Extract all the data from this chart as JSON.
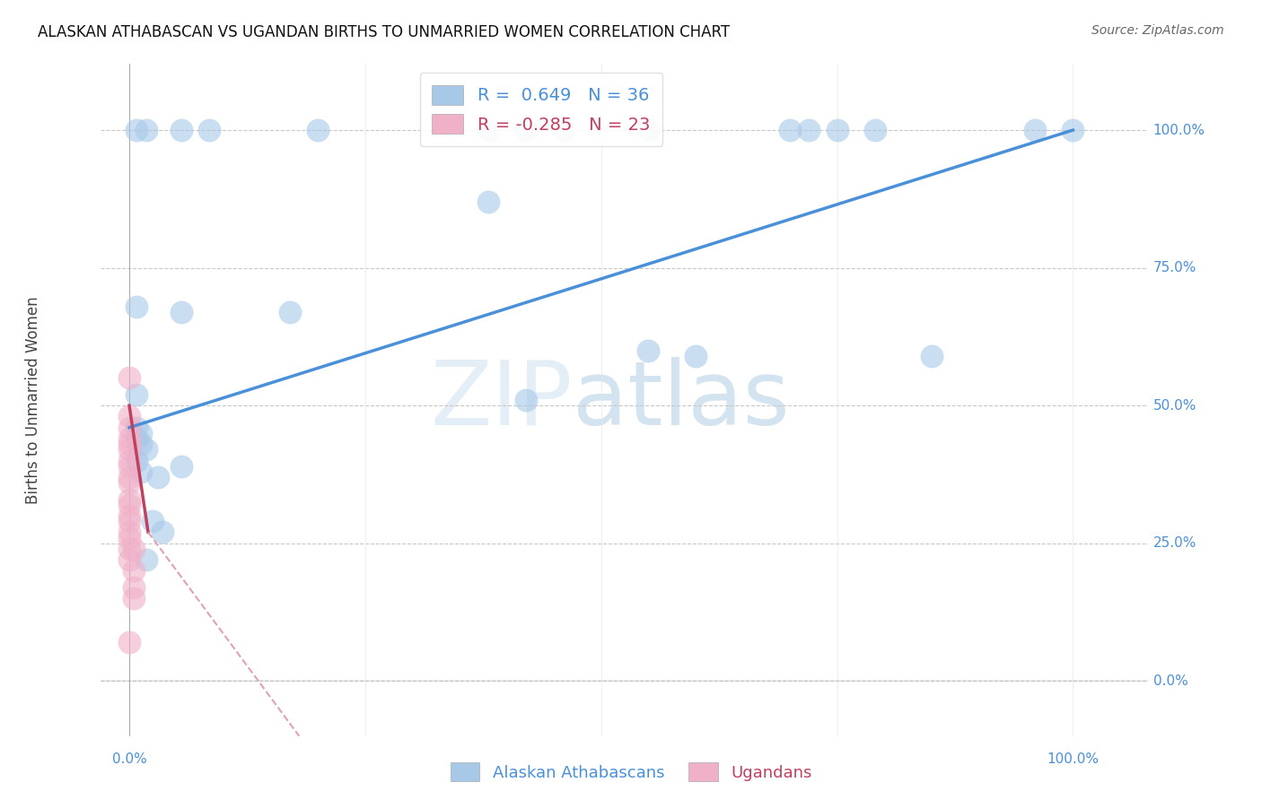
{
  "title": "ALASKAN ATHABASCAN VS UGANDAN BIRTHS TO UNMARRIED WOMEN CORRELATION CHART",
  "source": "Source: ZipAtlas.com",
  "ylabel": "Births to Unmarried Women",
  "watermark_zip": "ZIP",
  "watermark_atlas": "atlas",
  "blue_R": "0.649",
  "blue_N": "36",
  "pink_R": "-0.285",
  "pink_N": "23",
  "blue_color": "#a8c8e8",
  "pink_color": "#f0b0c8",
  "blue_line_color": "#4a90d9",
  "pink_line_color": "#c04060",
  "pink_dash_color": "#e0a0b8",
  "grid_color": "#c8c8c8",
  "blue_scatter": [
    [
      0.008,
      1.0
    ],
    [
      0.018,
      1.0
    ],
    [
      0.055,
      1.0
    ],
    [
      0.085,
      1.0
    ],
    [
      0.2,
      1.0
    ],
    [
      0.38,
      1.0
    ],
    [
      0.42,
      1.0
    ],
    [
      0.46,
      1.0
    ],
    [
      0.55,
      1.0
    ],
    [
      0.7,
      1.0
    ],
    [
      0.72,
      1.0
    ],
    [
      0.75,
      1.0
    ],
    [
      0.79,
      1.0
    ],
    [
      0.96,
      1.0
    ],
    [
      1.0,
      1.0
    ],
    [
      0.38,
      0.87
    ],
    [
      0.008,
      0.68
    ],
    [
      0.055,
      0.67
    ],
    [
      0.17,
      0.67
    ],
    [
      0.008,
      0.52
    ],
    [
      0.42,
      0.51
    ],
    [
      0.008,
      0.46
    ],
    [
      0.012,
      0.45
    ],
    [
      0.008,
      0.44
    ],
    [
      0.012,
      0.43
    ],
    [
      0.018,
      0.42
    ],
    [
      0.008,
      0.4
    ],
    [
      0.055,
      0.39
    ],
    [
      0.012,
      0.38
    ],
    [
      0.03,
      0.37
    ],
    [
      0.55,
      0.6
    ],
    [
      0.6,
      0.59
    ],
    [
      0.85,
      0.59
    ],
    [
      0.025,
      0.29
    ],
    [
      0.035,
      0.27
    ],
    [
      0.018,
      0.22
    ]
  ],
  "pink_scatter": [
    [
      0.0,
      0.55
    ],
    [
      0.0,
      0.48
    ],
    [
      0.0,
      0.46
    ],
    [
      0.0,
      0.44
    ],
    [
      0.0,
      0.43
    ],
    [
      0.0,
      0.42
    ],
    [
      0.0,
      0.4
    ],
    [
      0.0,
      0.39
    ],
    [
      0.0,
      0.37
    ],
    [
      0.0,
      0.36
    ],
    [
      0.0,
      0.33
    ],
    [
      0.0,
      0.32
    ],
    [
      0.0,
      0.3
    ],
    [
      0.0,
      0.29
    ],
    [
      0.0,
      0.27
    ],
    [
      0.0,
      0.26
    ],
    [
      0.0,
      0.24
    ],
    [
      0.005,
      0.24
    ],
    [
      0.0,
      0.22
    ],
    [
      0.005,
      0.2
    ],
    [
      0.005,
      0.17
    ],
    [
      0.005,
      0.15
    ],
    [
      0.0,
      0.07
    ]
  ],
  "blue_line": [
    0.0,
    0.46,
    1.0,
    1.0
  ],
  "pink_line_solid": [
    0.0,
    0.5,
    0.02,
    0.27
  ],
  "pink_line_dashed": [
    0.02,
    0.27,
    0.18,
    -0.1
  ],
  "xlim": [
    -0.03,
    1.08
  ],
  "ylim": [
    -0.1,
    1.12
  ],
  "xticks": [
    0.0,
    0.25,
    0.5,
    0.75,
    1.0
  ],
  "yticks": [
    0.0,
    0.25,
    0.5,
    0.75,
    1.0
  ],
  "ytick_labels_right": [
    "0.0%",
    "25.0%",
    "50.0%",
    "75.0%",
    "100.0%"
  ]
}
